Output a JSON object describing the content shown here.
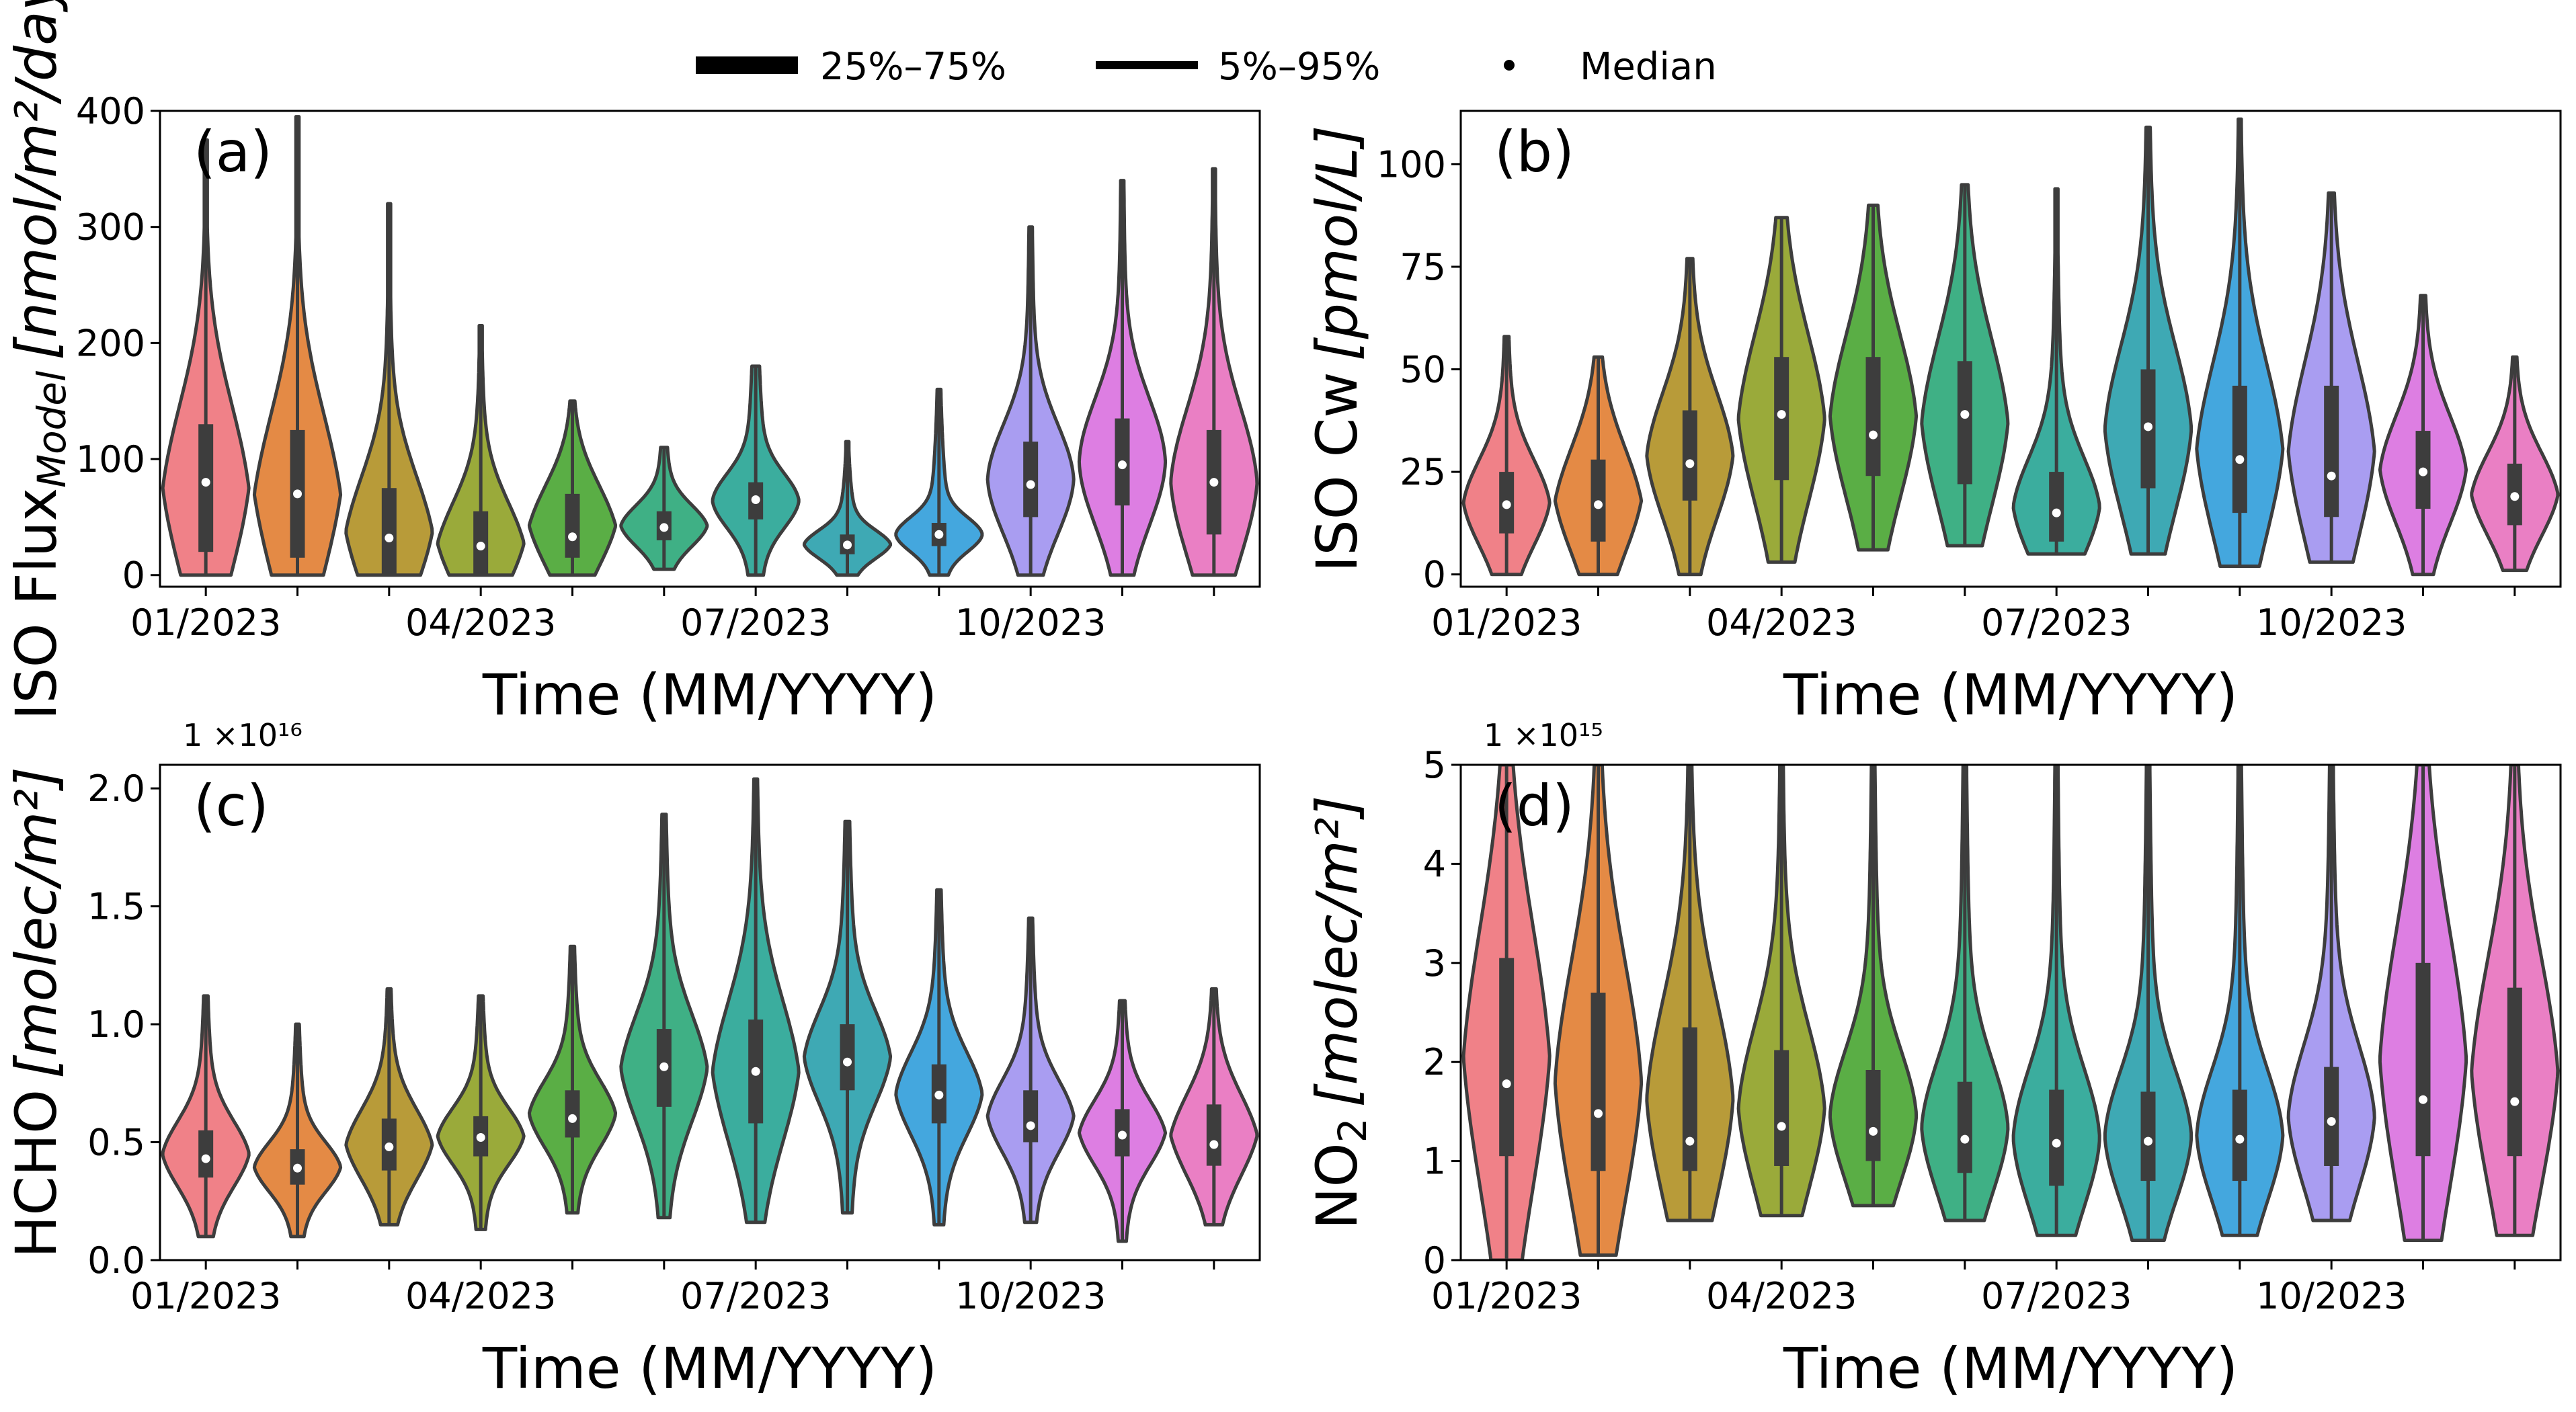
{
  "legend": {
    "iqr_label": "25%–75%",
    "range_label": "5%–95%",
    "median_label": "Median"
  },
  "chart_data": [
    {
      "type": "violin",
      "panel": "(a)",
      "ylabel_main": "ISO Flux",
      "ylabel_sub": "Model",
      "ylabel_unit": "[nmol/m²/day",
      "xlabel": "Time (MM/YYYY)",
      "ylim": [
        -10,
        400
      ],
      "yticks": [
        0,
        100,
        200,
        300,
        400
      ],
      "xtick_labels": [
        "01/2023",
        "04/2023",
        "07/2023",
        "10/2023"
      ],
      "xtick_positions": [
        0,
        3,
        6,
        9
      ],
      "colors": [
        "#f08188",
        "#e48a45",
        "#b89b39",
        "#9aaa3a",
        "#5aae45",
        "#3fb085",
        "#3bad9e",
        "#3ea9b4",
        "#44a7de",
        "#a99df1",
        "#dd7ee2",
        "#ea7fc4"
      ],
      "stats": [
        {
          "min": 0,
          "max": 375,
          "q1": 20,
          "q3": 130,
          "p5": 0,
          "p95": 375,
          "median": 80,
          "wn": 0.28,
          "wm": 0.22
        },
        {
          "min": 0,
          "max": 395,
          "q1": 15,
          "q3": 125,
          "p5": 0,
          "p95": 395,
          "median": 70,
          "wn": 0.32,
          "wm": 0.2
        },
        {
          "min": 0,
          "max": 320,
          "q1": 0,
          "q3": 75,
          "p5": 0,
          "p95": 320,
          "median": 32,
          "wn": 0.42,
          "wm": 0.25
        },
        {
          "min": 0,
          "max": 215,
          "q1": 0,
          "q3": 55,
          "p5": 0,
          "p95": 215,
          "median": 25,
          "wn": 0.45,
          "wm": 0.3
        },
        {
          "min": 0,
          "max": 150,
          "q1": 15,
          "q3": 70,
          "p5": 0,
          "p95": 150,
          "median": 33,
          "wn": 0.35,
          "wm": 0.32
        },
        {
          "min": 5,
          "max": 110,
          "q1": 30,
          "q3": 55,
          "p5": 5,
          "p95": 110,
          "median": 41,
          "wn": 0.36,
          "wm": 0.42
        },
        {
          "min": 0,
          "max": 180,
          "q1": 48,
          "q3": 80,
          "p5": 0,
          "p95": 180,
          "median": 65,
          "wn": 0.34,
          "wm": 0.48
        },
        {
          "min": 0,
          "max": 115,
          "q1": 18,
          "q3": 35,
          "p5": 0,
          "p95": 115,
          "median": 26,
          "wn": 0.38,
          "wm": 0.3
        },
        {
          "min": 0,
          "max": 160,
          "q1": 25,
          "q3": 45,
          "p5": 0,
          "p95": 160,
          "median": 35,
          "wn": 0.3,
          "wm": 0.4
        },
        {
          "min": 0,
          "max": 300,
          "q1": 50,
          "q3": 115,
          "p5": 0,
          "p95": 300,
          "median": 78,
          "wn": 0.22,
          "wm": 0.42
        },
        {
          "min": 0,
          "max": 340,
          "q1": 60,
          "q3": 135,
          "p5": 0,
          "p95": 340,
          "median": 95,
          "wn": 0.18,
          "wm": 0.45
        },
        {
          "min": 0,
          "max": 350,
          "q1": 35,
          "q3": 125,
          "p5": 0,
          "p95": 350,
          "median": 80,
          "wn": 0.25,
          "wm": 0.35
        }
      ]
    },
    {
      "type": "violin",
      "panel": "(b)",
      "ylabel_main": "ISO Cw",
      "ylabel_sub": "",
      "ylabel_unit": "[pmol/L]",
      "xlabel": "Time (MM/YYYY)",
      "ylim": [
        -3,
        113
      ],
      "yticks": [
        0,
        25,
        50,
        75,
        100
      ],
      "xtick_labels": [
        "01/2023",
        "04/2023",
        "07/2023",
        "10/2023"
      ],
      "xtick_positions": [
        0,
        3,
        6,
        9
      ],
      "colors": [
        "#f08188",
        "#e48a45",
        "#b89b39",
        "#9aaa3a",
        "#5aae45",
        "#3fb085",
        "#3bad9e",
        "#3ea9b4",
        "#44a7de",
        "#a99df1",
        "#dd7ee2",
        "#ea7fc4"
      ],
      "stats": [
        {
          "min": 0,
          "max": 58,
          "q1": 10,
          "q3": 25,
          "p5": 0,
          "p95": 58,
          "median": 17,
          "wn": 0.34,
          "wm": 0.38
        },
        {
          "min": 0,
          "max": 53,
          "q1": 8,
          "q3": 28,
          "p5": 0,
          "p95": 53,
          "median": 17,
          "wn": 0.36,
          "wm": 0.36
        },
        {
          "min": 0,
          "max": 77,
          "q1": 18,
          "q3": 40,
          "p5": 0,
          "p95": 77,
          "median": 27,
          "wn": 0.3,
          "wm": 0.38
        },
        {
          "min": 3,
          "max": 87,
          "q1": 23,
          "q3": 53,
          "p5": 3,
          "p95": 87,
          "median": 39,
          "wn": 0.3,
          "wm": 0.4
        },
        {
          "min": 6,
          "max": 90,
          "q1": 24,
          "q3": 53,
          "p5": 6,
          "p95": 90,
          "median": 34,
          "wn": 0.3,
          "wm": 0.42
        },
        {
          "min": 7,
          "max": 95,
          "q1": 22,
          "q3": 52,
          "p5": 7,
          "p95": 95,
          "median": 39,
          "wn": 0.3,
          "wm": 0.38
        },
        {
          "min": 5,
          "max": 94,
          "q1": 8,
          "q3": 25,
          "p5": 5,
          "p95": 94,
          "median": 15,
          "wn": 0.36,
          "wm": 0.3
        },
        {
          "min": 5,
          "max": 109,
          "q1": 21,
          "q3": 50,
          "p5": 5,
          "p95": 109,
          "median": 36,
          "wn": 0.3,
          "wm": 0.38
        },
        {
          "min": 2,
          "max": 111,
          "q1": 15,
          "q3": 46,
          "p5": 2,
          "p95": 111,
          "median": 28,
          "wn": 0.32,
          "wm": 0.32
        },
        {
          "min": 3,
          "max": 93,
          "q1": 14,
          "q3": 46,
          "p5": 3,
          "p95": 93,
          "median": 24,
          "wn": 0.3,
          "wm": 0.38
        },
        {
          "min": 0,
          "max": 68,
          "q1": 16,
          "q3": 35,
          "p5": 0,
          "p95": 68,
          "median": 25,
          "wn": 0.3,
          "wm": 0.36
        },
        {
          "min": 1,
          "max": 53,
          "q1": 12,
          "q3": 27,
          "p5": 1,
          "p95": 53,
          "median": 19,
          "wn": 0.32,
          "wm": 0.32
        }
      ]
    },
    {
      "type": "violin",
      "panel": "(c)",
      "exponent_label": "1 ×10¹⁶",
      "ylabel_main": "HCHO",
      "ylabel_sub": "",
      "ylabel_unit": "[molec/m²]",
      "xlabel": "Time (MM/YYYY)",
      "ylim": [
        0,
        2.1
      ],
      "yticks": [
        0.0,
        0.5,
        1.0,
        1.5,
        2.0
      ],
      "ytick_labels": [
        "0.0",
        "0.5",
        "1.0",
        "1.5",
        "2.0"
      ],
      "xtick_labels": [
        "01/2023",
        "04/2023",
        "07/2023",
        "10/2023"
      ],
      "xtick_positions": [
        0,
        3,
        6,
        9
      ],
      "colors": [
        "#f08188",
        "#e48a45",
        "#b89b39",
        "#9aaa3a",
        "#5aae45",
        "#3fb085",
        "#3bad9e",
        "#3ea9b4",
        "#44a7de",
        "#a99df1",
        "#dd7ee2",
        "#ea7fc4"
      ],
      "stats": [
        {
          "min": 0.1,
          "max": 1.12,
          "q1": 0.35,
          "q3": 0.55,
          "p5": 0.1,
          "p95": 1.12,
          "median": 0.43,
          "wn": 0.4,
          "wm": 0.32
        },
        {
          "min": 0.1,
          "max": 1.0,
          "q1": 0.32,
          "q3": 0.47,
          "p5": 0.1,
          "p95": 1.0,
          "median": 0.39,
          "wn": 0.4,
          "wm": 0.3
        },
        {
          "min": 0.15,
          "max": 1.15,
          "q1": 0.38,
          "q3": 0.6,
          "p5": 0.15,
          "p95": 1.15,
          "median": 0.48,
          "wn": 0.4,
          "wm": 0.3
        },
        {
          "min": 0.13,
          "max": 1.12,
          "q1": 0.44,
          "q3": 0.61,
          "p5": 0.13,
          "p95": 1.12,
          "median": 0.52,
          "wn": 0.4,
          "wm": 0.3
        },
        {
          "min": 0.2,
          "max": 1.33,
          "q1": 0.52,
          "q3": 0.72,
          "p5": 0.2,
          "p95": 1.33,
          "median": 0.6,
          "wn": 0.4,
          "wm": 0.3
        },
        {
          "min": 0.18,
          "max": 1.89,
          "q1": 0.65,
          "q3": 0.98,
          "p5": 0.18,
          "p95": 1.89,
          "median": 0.82,
          "wn": 0.4,
          "wm": 0.3
        },
        {
          "min": 0.16,
          "max": 2.04,
          "q1": 0.58,
          "q3": 1.02,
          "p5": 0.16,
          "p95": 2.04,
          "median": 0.8,
          "wn": 0.38,
          "wm": 0.3
        },
        {
          "min": 0.2,
          "max": 1.86,
          "q1": 0.72,
          "q3": 1.0,
          "p5": 0.2,
          "p95": 1.86,
          "median": 0.84,
          "wn": 0.4,
          "wm": 0.3
        },
        {
          "min": 0.15,
          "max": 1.57,
          "q1": 0.58,
          "q3": 0.83,
          "p5": 0.15,
          "p95": 1.57,
          "median": 0.7,
          "wn": 0.38,
          "wm": 0.3
        },
        {
          "min": 0.16,
          "max": 1.45,
          "q1": 0.5,
          "q3": 0.72,
          "p5": 0.16,
          "p95": 1.45,
          "median": 0.57,
          "wn": 0.4,
          "wm": 0.3
        },
        {
          "min": 0.08,
          "max": 1.1,
          "q1": 0.44,
          "q3": 0.64,
          "p5": 0.08,
          "p95": 1.1,
          "median": 0.53,
          "wn": 0.4,
          "wm": 0.3
        },
        {
          "min": 0.15,
          "max": 1.15,
          "q1": 0.4,
          "q3": 0.66,
          "p5": 0.15,
          "p95": 1.15,
          "median": 0.49,
          "wn": 0.4,
          "wm": 0.3
        }
      ]
    },
    {
      "type": "violin",
      "panel": "(d)",
      "exponent_label": "1 ×10¹⁵",
      "ylabel_main": "NO",
      "ylabel_sub": "2",
      "ylabel_unit": "[molec/m²]",
      "xlabel": "Time (MM/YYYY)",
      "ylim": [
        0,
        5
      ],
      "yticks": [
        0,
        1,
        2,
        3,
        4,
        5
      ],
      "xtick_labels": [
        "01/2023",
        "04/2023",
        "07/2023",
        "10/2023"
      ],
      "xtick_positions": [
        0,
        3,
        6,
        9
      ],
      "colors": [
        "#f08188",
        "#e48a45",
        "#b89b39",
        "#9aaa3a",
        "#5aae45",
        "#3fb085",
        "#3bad9e",
        "#3ea9b4",
        "#44a7de",
        "#a99df1",
        "#dd7ee2",
        "#ea7fc4"
      ],
      "stats": [
        {
          "min": 0,
          "max": 5,
          "q1": 1.05,
          "q3": 3.05,
          "p5": 0,
          "p95": 5,
          "median": 1.78,
          "wn": 0.3,
          "wm": 0.35
        },
        {
          "min": 0.05,
          "max": 5,
          "q1": 0.9,
          "q3": 2.7,
          "p5": 0.05,
          "p95": 5,
          "median": 1.48,
          "wn": 0.28,
          "wm": 0.38
        },
        {
          "min": 0.4,
          "max": 5,
          "q1": 0.9,
          "q3": 2.35,
          "p5": 0.4,
          "p95": 5,
          "median": 1.2,
          "wn": 0.28,
          "wm": 0.38
        },
        {
          "min": 0.45,
          "max": 5,
          "q1": 0.95,
          "q3": 2.12,
          "p5": 0.45,
          "p95": 5,
          "median": 1.35,
          "wn": 0.3,
          "wm": 0.38
        },
        {
          "min": 0.55,
          "max": 5,
          "q1": 1.0,
          "q3": 1.92,
          "p5": 0.55,
          "p95": 5,
          "median": 1.3,
          "wn": 0.3,
          "wm": 0.4
        },
        {
          "min": 0.4,
          "max": 5,
          "q1": 0.88,
          "q3": 1.8,
          "p5": 0.4,
          "p95": 5,
          "median": 1.22,
          "wn": 0.3,
          "wm": 0.4
        },
        {
          "min": 0.25,
          "max": 5,
          "q1": 0.75,
          "q3": 1.72,
          "p5": 0.25,
          "p95": 5,
          "median": 1.18,
          "wn": 0.26,
          "wm": 0.4
        },
        {
          "min": 0.2,
          "max": 5,
          "q1": 0.8,
          "q3": 1.7,
          "p5": 0.2,
          "p95": 5,
          "median": 1.2,
          "wn": 0.28,
          "wm": 0.4
        },
        {
          "min": 0.25,
          "max": 5,
          "q1": 0.8,
          "q3": 1.72,
          "p5": 0.25,
          "p95": 5,
          "median": 1.22,
          "wn": 0.28,
          "wm": 0.4
        },
        {
          "min": 0.4,
          "max": 5,
          "q1": 0.95,
          "q3": 1.95,
          "p5": 0.4,
          "p95": 5,
          "median": 1.4,
          "wn": 0.3,
          "wm": 0.4
        },
        {
          "min": 0.2,
          "max": 5,
          "q1": 1.05,
          "q3": 3.0,
          "p5": 0.2,
          "p95": 5,
          "median": 1.62,
          "wn": 0.28,
          "wm": 0.38
        },
        {
          "min": 0.25,
          "max": 5,
          "q1": 1.05,
          "q3": 2.75,
          "p5": 0.25,
          "p95": 5,
          "median": 1.6,
          "wn": 0.3,
          "wm": 0.38
        }
      ]
    }
  ]
}
